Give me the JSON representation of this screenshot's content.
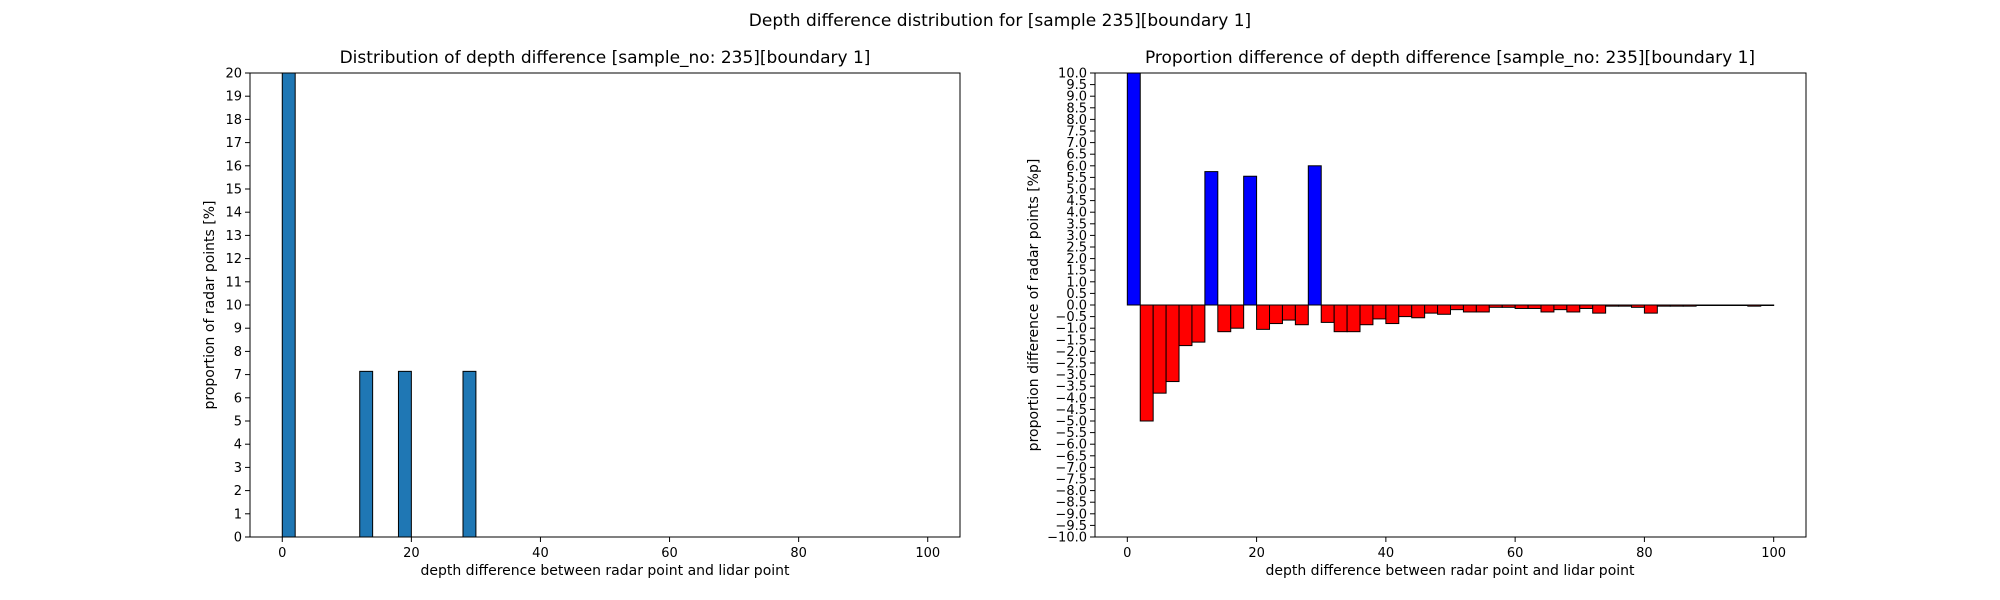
{
  "figure": {
    "title": "Depth difference distribution for [sample 235][boundary 1]"
  },
  "chart_data": [
    {
      "type": "bar",
      "title": "Distribution of depth difference [sample_no: 235][boundary 1]",
      "xlabel": "depth difference between radar point and lidar point",
      "ylabel": "proportion of radar points [%]",
      "xlim": [
        -5,
        105
      ],
      "ylim": [
        0,
        20
      ],
      "xticks": [
        0,
        20,
        40,
        60,
        80,
        100
      ],
      "yticks": [
        0,
        1,
        2,
        3,
        4,
        5,
        6,
        7,
        8,
        9,
        10,
        11,
        12,
        13,
        14,
        15,
        16,
        17,
        18,
        19,
        20
      ],
      "bar_width": 2,
      "bar_color": "#1f77b4",
      "edge_color": "#000000",
      "x": [
        1,
        13,
        19,
        29
      ],
      "values": [
        20,
        7.14,
        7.14,
        7.14
      ]
    },
    {
      "type": "bar",
      "title": "Proportion difference of depth difference [sample_no: 235][boundary 1]",
      "xlabel": "depth difference between radar point and lidar point",
      "ylabel": "proportion difference of radar points [%p]",
      "xlim": [
        -5,
        105
      ],
      "ylim": [
        -10,
        10
      ],
      "xticks": [
        0,
        20,
        40,
        60,
        80,
        100
      ],
      "ytick_step": 0.5,
      "bar_width": 2,
      "positive_color": "#0000ff",
      "negative_color": "#ff0000",
      "edge_color": "#000000",
      "x": [
        1,
        3,
        5,
        7,
        9,
        11,
        13,
        15,
        17,
        19,
        21,
        23,
        25,
        27,
        29,
        31,
        33,
        35,
        37,
        39,
        41,
        43,
        45,
        47,
        49,
        51,
        53,
        55,
        57,
        59,
        61,
        63,
        65,
        67,
        69,
        71,
        73,
        75,
        77,
        79,
        81,
        83,
        85,
        87,
        89,
        91,
        93,
        95,
        97,
        99
      ],
      "values": [
        10,
        -5.0,
        -3.8,
        -3.3,
        -1.75,
        -1.6,
        5.75,
        -1.15,
        -1.0,
        5.55,
        -1.05,
        -0.8,
        -0.65,
        -0.85,
        6.0,
        -0.75,
        -1.15,
        -1.15,
        -0.85,
        -0.6,
        -0.8,
        -0.5,
        -0.55,
        -0.35,
        -0.4,
        -0.2,
        -0.3,
        -0.3,
        -0.1,
        -0.1,
        -0.15,
        -0.15,
        -0.3,
        -0.2,
        -0.3,
        -0.15,
        -0.35,
        -0.05,
        -0.05,
        -0.1,
        -0.35,
        -0.05,
        -0.05,
        -0.05,
        -0.02,
        -0.02,
        -0.02,
        -0.02,
        -0.05,
        -0.02
      ]
    }
  ]
}
